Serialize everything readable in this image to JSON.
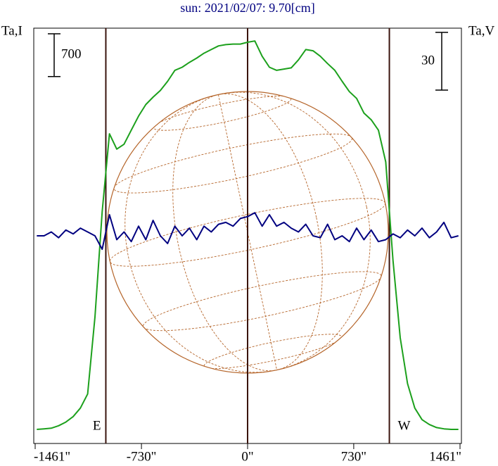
{
  "chart_data": {
    "type": "line",
    "title": "sun: 2021/02/07: 9.70[cm]",
    "ylabel": "Ta,I",
    "y2label": "Ta,V",
    "x": [
      -1450,
      -1400,
      -1350,
      -1300,
      -1250,
      -1200,
      -1150,
      -1100,
      -1050,
      -1000,
      -950,
      -900,
      -850,
      -800,
      -750,
      -700,
      -650,
      -600,
      -550,
      -500,
      -450,
      -400,
      -350,
      -300,
      -250,
      -200,
      -150,
      -100,
      -50,
      0,
      50,
      100,
      150,
      200,
      250,
      300,
      350,
      400,
      450,
      500,
      550,
      600,
      650,
      700,
      750,
      800,
      850,
      900,
      950,
      1000,
      1050,
      1100,
      1150,
      1200,
      1250,
      1300,
      1350,
      1400,
      1450
    ],
    "series": [
      {
        "name": "I",
        "color": "#1ca01c",
        "values": [
          230,
          240,
          250,
          290,
          350,
          440,
          580,
          810,
          2070,
          3800,
          5070,
          4820,
          4900,
          5130,
          5360,
          5550,
          5670,
          5780,
          5930,
          6110,
          6160,
          6240,
          6310,
          6390,
          6450,
          6510,
          6530,
          6540,
          6540,
          6570,
          6590,
          6340,
          6160,
          6110,
          6130,
          6150,
          6280,
          6450,
          6430,
          6340,
          6220,
          6110,
          5930,
          5760,
          5650,
          5410,
          5300,
          5130,
          4610,
          3000,
          1730,
          980,
          580,
          390,
          310,
          260,
          240,
          230,
          230
        ]
      },
      {
        "name": "V",
        "color": "#000080",
        "axis": "y2",
        "values": [
          0,
          0,
          2,
          -1,
          3,
          1,
          4,
          2,
          0,
          -7,
          11,
          -2,
          2,
          -3,
          5,
          -2,
          8,
          0,
          -4,
          5,
          0,
          4,
          -2,
          5,
          2,
          6,
          7,
          5,
          9,
          10,
          12,
          5,
          11,
          5,
          7,
          4,
          2,
          6,
          0,
          -1,
          6,
          -2,
          0,
          -3,
          4,
          -2,
          3,
          -3,
          -2,
          1,
          -1,
          3,
          0,
          4,
          -1,
          2,
          7,
          -1,
          0
        ]
      }
    ],
    "xlim": [
      -1461,
      1461
    ],
    "xticks": [
      {
        "value": -1461,
        "label": "-1461\""
      },
      {
        "value": -730,
        "label": "-730\""
      },
      {
        "value": 0,
        "label": "0\""
      },
      {
        "value": 730,
        "label": "730\""
      },
      {
        "value": 1461,
        "label": "1461\""
      }
    ],
    "ylim": [
      0,
      6800
    ],
    "y2lim": [
      -108,
      108
    ],
    "scale_bars": [
      {
        "value": 700,
        "axis": "y"
      },
      {
        "value": 30,
        "axis": "y2"
      }
    ],
    "vlines": [
      -975,
      0,
      975
    ],
    "annotations": [
      {
        "text": "E",
        "x": -975
      },
      {
        "text": "W",
        "x": 975
      }
    ]
  }
}
